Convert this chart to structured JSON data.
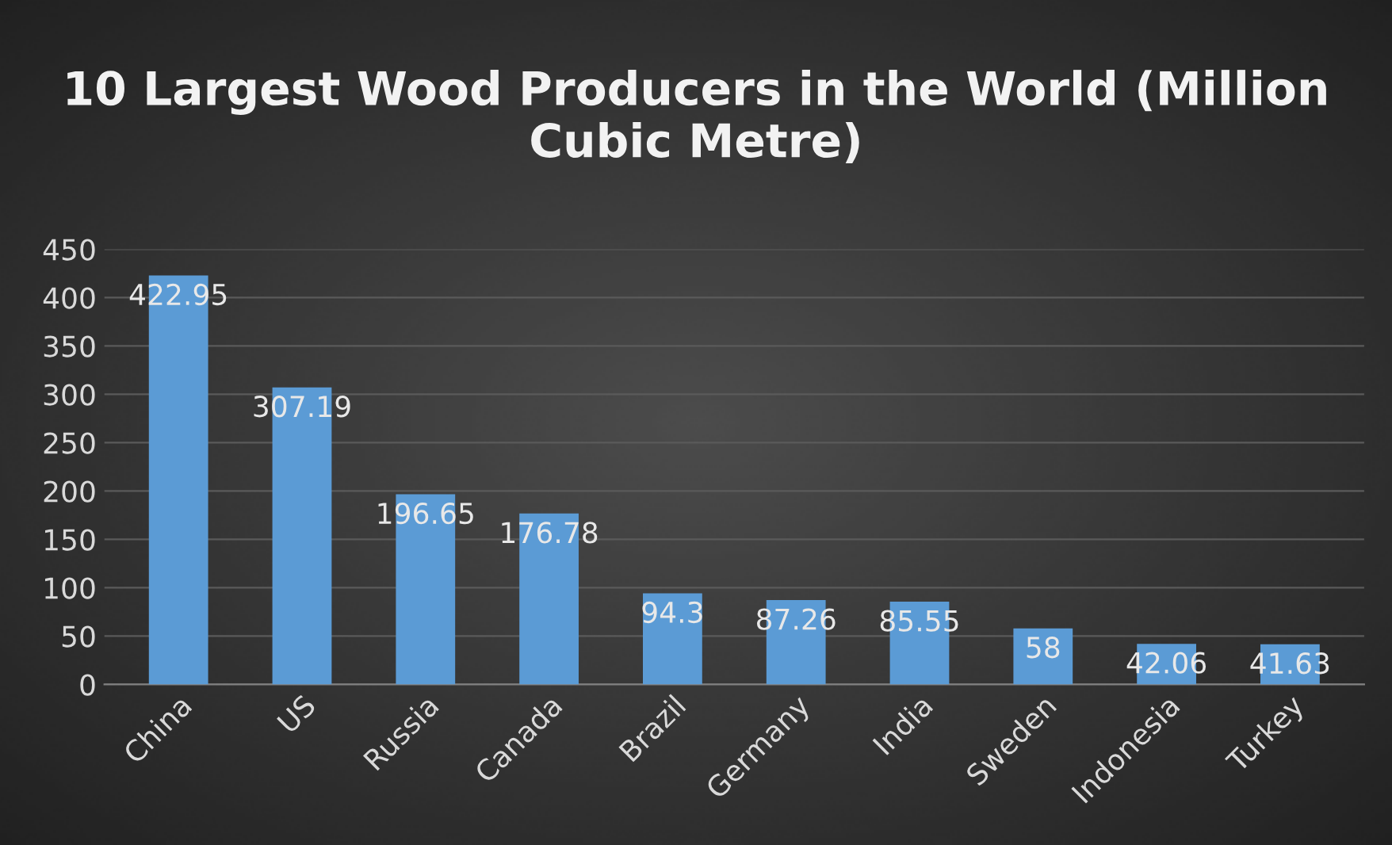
{
  "chart_data": {
    "type": "bar",
    "title": "10 Largest Wood Producers in the World (Million Cubic Metre)",
    "categories": [
      "China",
      "US",
      "Russia",
      "Canada",
      "Brazil",
      "Germany",
      "India",
      "Sweden",
      "Indonesia",
      "Turkey"
    ],
    "values": [
      422.95,
      307.19,
      196.65,
      176.78,
      94.3,
      87.26,
      85.55,
      58,
      42.06,
      41.63
    ],
    "color": "#5b9bd5",
    "ylim": [
      0,
      450
    ],
    "yticks": [
      0,
      50,
      100,
      150,
      200,
      250,
      300,
      350,
      400,
      450
    ],
    "grid": "y",
    "data_labels": true
  }
}
